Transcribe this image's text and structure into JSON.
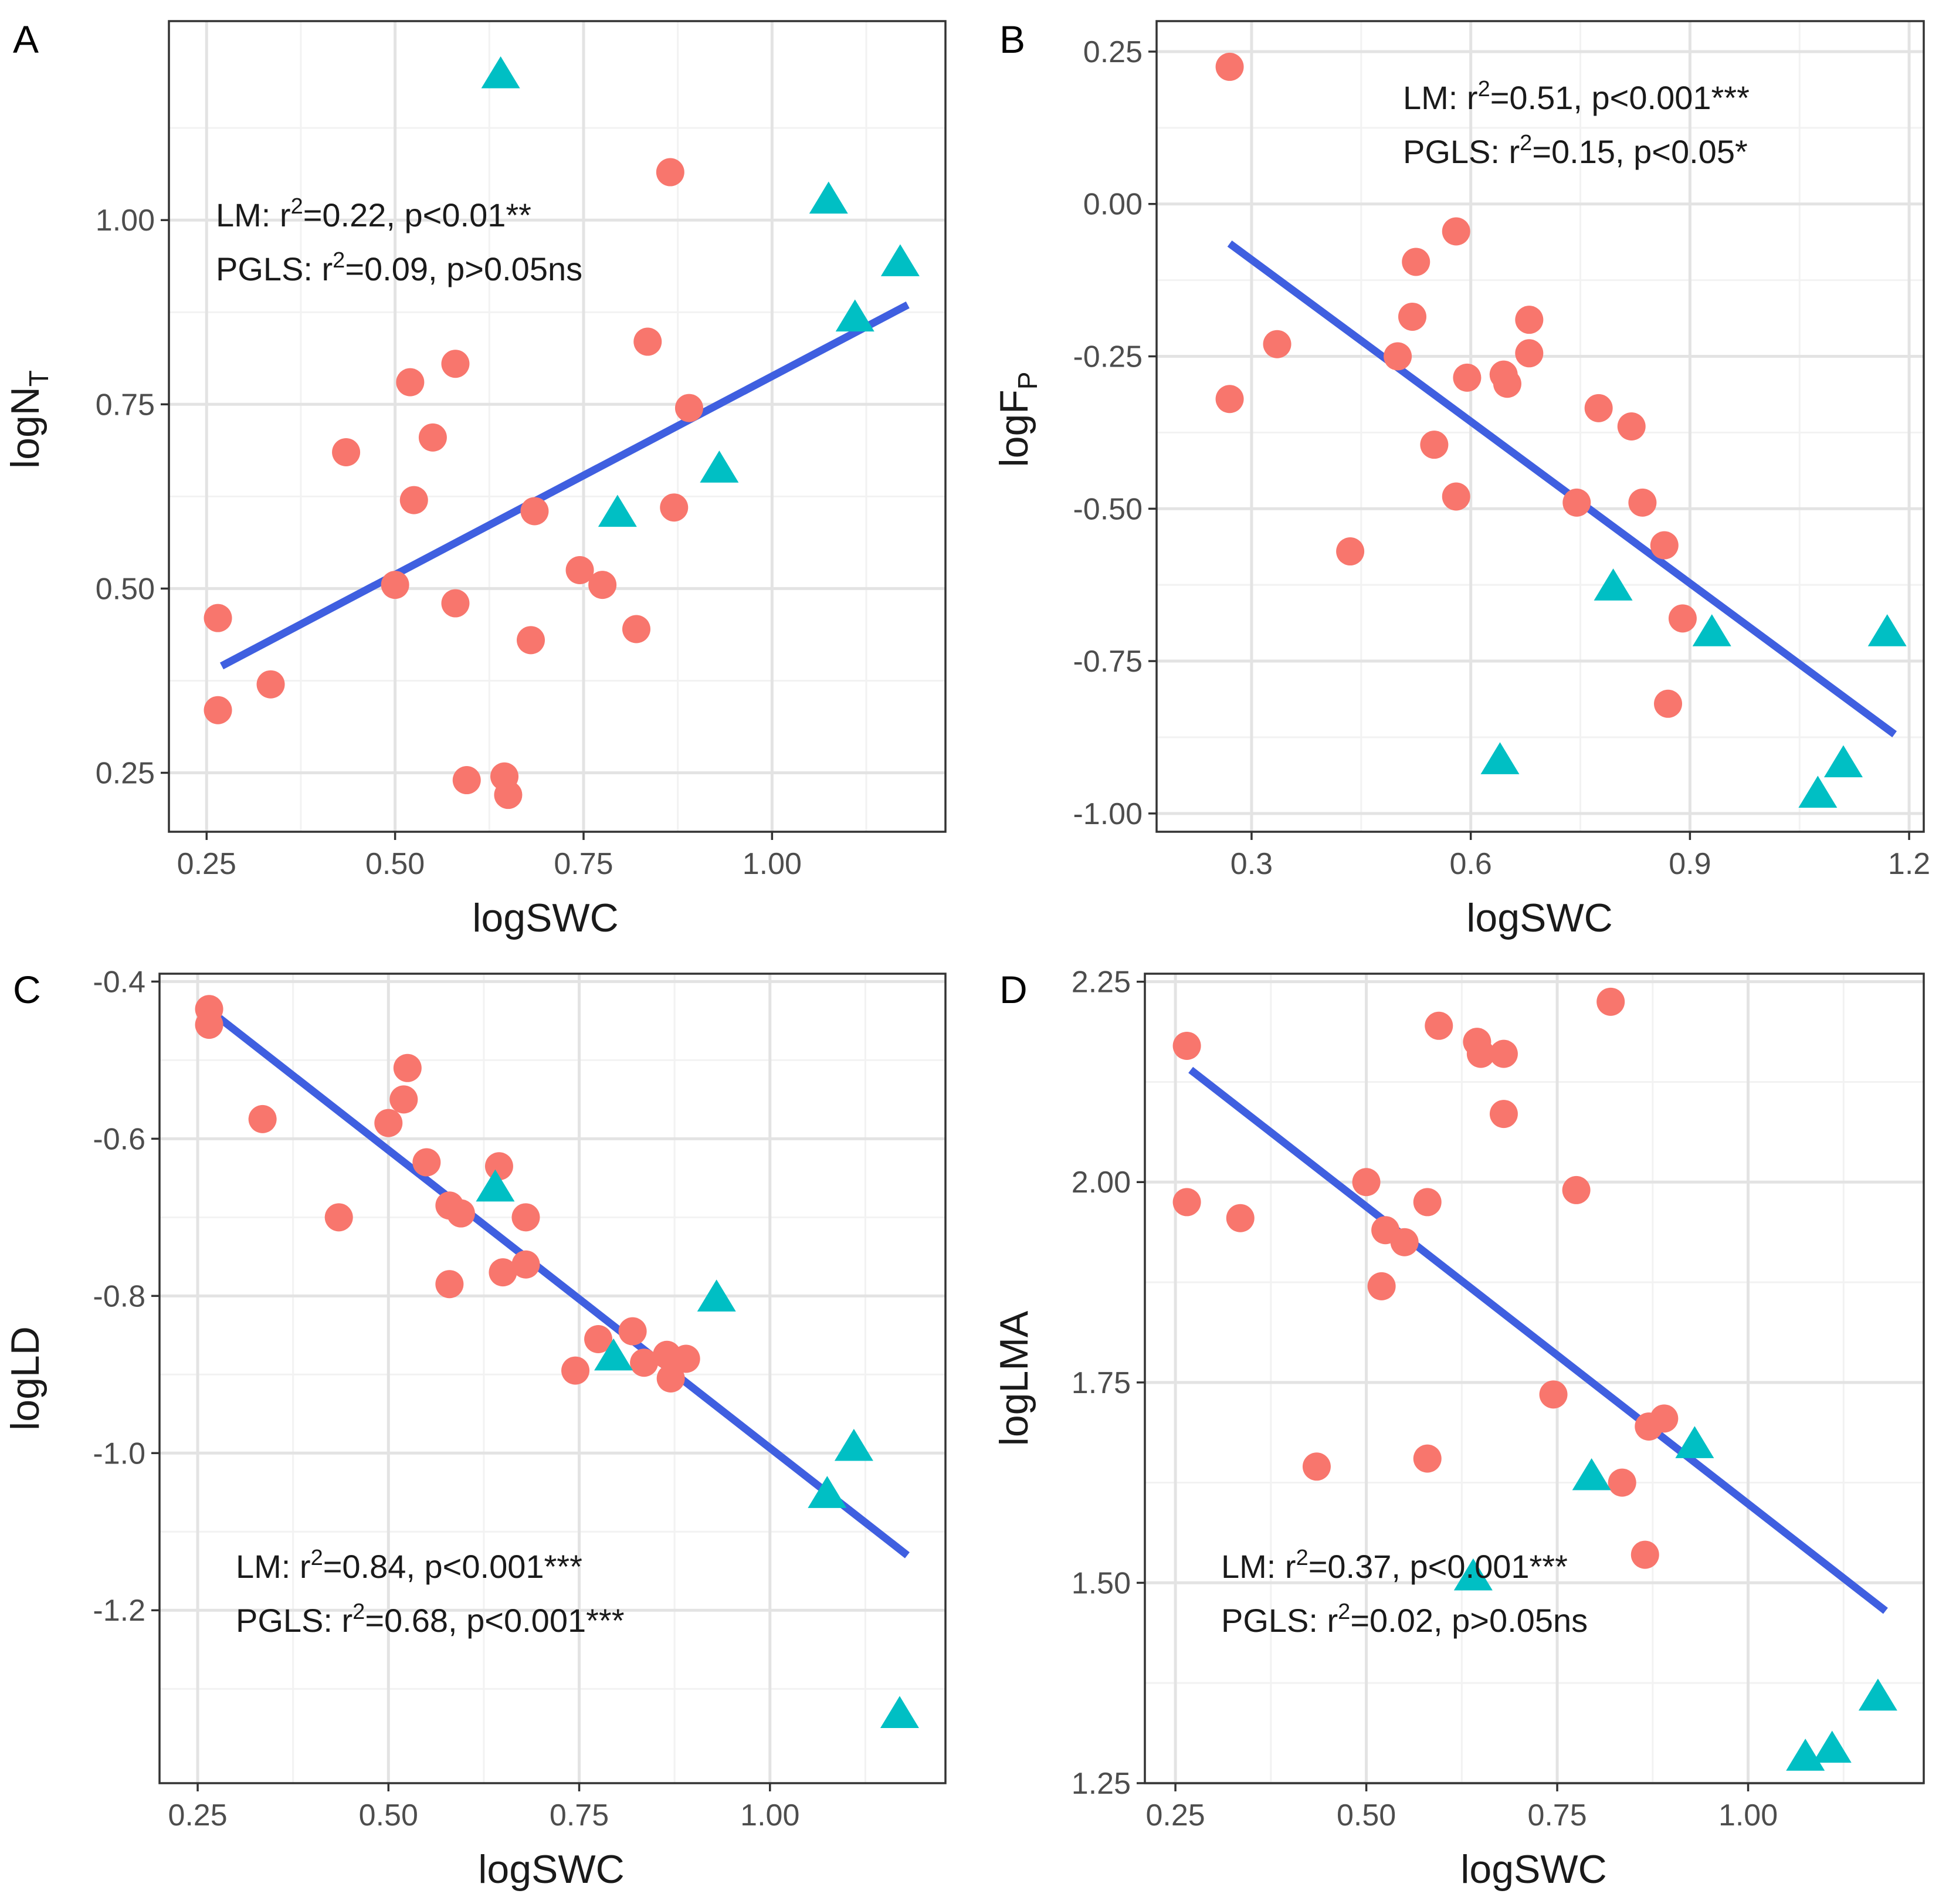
{
  "colors": {
    "herb": "#F8766D",
    "tree": "#00BFC4",
    "fit_line": "#3F5FE0"
  },
  "chart_data": [
    {
      "panel": "A",
      "type": "scatter",
      "xlabel": "logSWC",
      "ylabel": {
        "base": "logN",
        "sub": "T"
      },
      "xlim": [
        0.2,
        1.23
      ],
      "ylim": [
        0.17,
        1.27
      ],
      "xticks": [
        0.25,
        0.5,
        0.75,
        1.0
      ],
      "xtick_labels": [
        "0.25",
        "0.50",
        "0.75",
        "1.00"
      ],
      "yticks": [
        0.25,
        0.5,
        0.75,
        1.0
      ],
      "ytick_labels": [
        "0.25",
        "0.50",
        "0.75",
        "1.00"
      ],
      "annotation_pos": "top-left",
      "stats": [
        {
          "prefix": "LM: r",
          "sup": "2",
          "rest": "=0.22, p<0.01**"
        },
        {
          "prefix": "PGLS: r",
          "sup": "2",
          "rest": "=0.09, p>0.05ns"
        }
      ],
      "fit": {
        "x": [
          0.27,
          1.18
        ],
        "y": [
          0.395,
          0.885
        ]
      },
      "series": [
        {
          "name": "circles",
          "marker": "circle",
          "points": [
            [
              0.265,
              0.46
            ],
            [
              0.265,
              0.335
            ],
            [
              0.335,
              0.37
            ],
            [
              0.435,
              0.685
            ],
            [
              0.5,
              0.505
            ],
            [
              0.52,
              0.78
            ],
            [
              0.525,
              0.62
            ],
            [
              0.55,
              0.705
            ],
            [
              0.58,
              0.805
            ],
            [
              0.58,
              0.48
            ],
            [
              0.595,
              0.24
            ],
            [
              0.645,
              0.245
            ],
            [
              0.65,
              0.22
            ],
            [
              0.68,
              0.43
            ],
            [
              0.685,
              0.605
            ],
            [
              0.745,
              0.525
            ],
            [
              0.775,
              0.505
            ],
            [
              0.82,
              0.445
            ],
            [
              0.835,
              0.835
            ],
            [
              0.865,
              1.065
            ],
            [
              0.87,
              0.61
            ],
            [
              0.89,
              0.745
            ]
          ]
        },
        {
          "name": "triangles",
          "marker": "triangle",
          "points": [
            [
              0.64,
              1.2
            ],
            [
              0.795,
              0.605
            ],
            [
              0.93,
              0.665
            ],
            [
              1.075,
              1.03
            ],
            [
              1.11,
              0.87
            ],
            [
              1.17,
              0.945
            ]
          ]
        }
      ]
    },
    {
      "panel": "B",
      "type": "scatter",
      "xlabel": "logSWC",
      "ylabel": {
        "base": "logF",
        "sub": "P"
      },
      "xlim": [
        0.17,
        1.22
      ],
      "ylim": [
        -1.03,
        0.3
      ],
      "xticks": [
        0.3,
        0.6,
        0.9,
        1.2
      ],
      "xtick_labels": [
        "0.3",
        "0.6",
        "0.9",
        "1.2"
      ],
      "yticks": [
        -1.0,
        -0.75,
        -0.5,
        -0.25,
        0.0,
        0.25
      ],
      "ytick_labels": [
        "-1.00",
        "-0.75",
        "-0.50",
        "-0.25",
        "0.00",
        "0.25"
      ],
      "annotation_pos": "top-right",
      "stats": [
        {
          "prefix": "LM: r",
          "sup": "2",
          "rest": "=0.51, p<0.001***"
        },
        {
          "prefix": "PGLS: r",
          "sup": "2",
          "rest": "=0.15, p<0.05*"
        }
      ],
      "fit": {
        "x": [
          0.27,
          1.18
        ],
        "y": [
          -0.065,
          -0.87
        ]
      },
      "series": [
        {
          "name": "circles",
          "marker": "circle",
          "points": [
            [
              0.27,
              0.225
            ],
            [
              0.27,
              -0.32
            ],
            [
              0.335,
              -0.23
            ],
            [
              0.435,
              -0.57
            ],
            [
              0.5,
              -0.25
            ],
            [
              0.52,
              -0.185
            ],
            [
              0.525,
              -0.095
            ],
            [
              0.55,
              -0.395
            ],
            [
              0.58,
              -0.045
            ],
            [
              0.58,
              -0.48
            ],
            [
              0.595,
              -0.285
            ],
            [
              0.645,
              -0.28
            ],
            [
              0.65,
              -0.295
            ],
            [
              0.68,
              -0.19
            ],
            [
              0.68,
              -0.245
            ],
            [
              0.745,
              -0.49
            ],
            [
              0.775,
              -0.335
            ],
            [
              0.82,
              -0.365
            ],
            [
              0.835,
              -0.49
            ],
            [
              0.865,
              -0.56
            ],
            [
              0.87,
              -0.82
            ],
            [
              0.89,
              -0.68
            ]
          ]
        },
        {
          "name": "triangles",
          "marker": "triangle",
          "points": [
            [
              0.64,
              -0.91
            ],
            [
              0.795,
              -0.625
            ],
            [
              0.93,
              -0.7
            ],
            [
              1.075,
              -0.965
            ],
            [
              1.11,
              -0.915
            ],
            [
              1.17,
              -0.7
            ]
          ]
        }
      ]
    },
    {
      "panel": "C",
      "type": "scatter",
      "xlabel": "logSWC",
      "ylabel": {
        "base": "logLD",
        "sub": ""
      },
      "xlim": [
        0.2,
        1.23
      ],
      "ylim": [
        -1.42,
        -0.39
      ],
      "xticks": [
        0.25,
        0.5,
        0.75,
        1.0
      ],
      "xtick_labels": [
        "0.25",
        "0.50",
        "0.75",
        "1.00"
      ],
      "yticks": [
        -1.2,
        -1.0,
        -0.8,
        -0.6,
        -0.4
      ],
      "ytick_labels": [
        "-1.2",
        "-1.0",
        "-0.8",
        "-0.6",
        "-0.4"
      ],
      "annotation_pos": "bottom-left",
      "stats": [
        {
          "prefix": "LM: r",
          "sup": "2",
          "rest": "=0.84, p<0.001***"
        },
        {
          "prefix": "PGLS: r",
          "sup": "2",
          "rest": "=0.68, p<0.001***"
        }
      ],
      "fit": {
        "x": [
          0.27,
          1.18
        ],
        "y": [
          -0.44,
          -1.13
        ]
      },
      "series": [
        {
          "name": "circles",
          "marker": "circle",
          "points": [
            [
              0.265,
              -0.435
            ],
            [
              0.265,
              -0.455
            ],
            [
              0.335,
              -0.575
            ],
            [
              0.435,
              -0.7
            ],
            [
              0.5,
              -0.58
            ],
            [
              0.52,
              -0.55
            ],
            [
              0.525,
              -0.51
            ],
            [
              0.55,
              -0.63
            ],
            [
              0.58,
              -0.685
            ],
            [
              0.58,
              -0.785
            ],
            [
              0.595,
              -0.695
            ],
            [
              0.645,
              -0.635
            ],
            [
              0.65,
              -0.77
            ],
            [
              0.68,
              -0.7
            ],
            [
              0.68,
              -0.76
            ],
            [
              0.745,
              -0.895
            ],
            [
              0.775,
              -0.855
            ],
            [
              0.82,
              -0.845
            ],
            [
              0.835,
              -0.885
            ],
            [
              0.865,
              -0.875
            ],
            [
              0.87,
              -0.905
            ],
            [
              0.89,
              -0.88
            ]
          ]
        },
        {
          "name": "triangles",
          "marker": "triangle",
          "points": [
            [
              0.64,
              -0.66
            ],
            [
              0.795,
              -0.875
            ],
            [
              0.93,
              -0.8
            ],
            [
              1.075,
              -1.05
            ],
            [
              1.11,
              -0.99
            ],
            [
              1.17,
              -1.33
            ]
          ]
        }
      ]
    },
    {
      "panel": "D",
      "type": "scatter",
      "xlabel": "logSWC",
      "ylabel": {
        "base": "logLMA",
        "sub": ""
      },
      "xlim": [
        0.21,
        1.23
      ],
      "ylim": [
        1.25,
        2.26
      ],
      "xticks": [
        0.25,
        0.5,
        0.75,
        1.0
      ],
      "xtick_labels": [
        "0.25",
        "0.50",
        "0.75",
        "1.00"
      ],
      "yticks": [
        1.25,
        1.5,
        1.75,
        2.0,
        2.25
      ],
      "ytick_labels": [
        "1.25",
        "1.50",
        "1.75",
        "2.00",
        "2.25"
      ],
      "annotation_pos": "bottom-left",
      "stats": [
        {
          "prefix": "LM: r",
          "sup": "2",
          "rest": "=0.37, p<0.001***"
        },
        {
          "prefix": "PGLS: r",
          "sup": "2",
          "rest": "=0.02, p>0.05ns"
        }
      ],
      "fit": {
        "x": [
          0.27,
          1.18
        ],
        "y": [
          2.14,
          1.465
        ]
      },
      "series": [
        {
          "name": "circles",
          "marker": "circle",
          "points": [
            [
              0.265,
              2.17
            ],
            [
              0.265,
              1.975
            ],
            [
              0.335,
              1.955
            ],
            [
              0.435,
              1.645
            ],
            [
              0.5,
              2.0
            ],
            [
              0.52,
              1.87
            ],
            [
              0.525,
              1.94
            ],
            [
              0.55,
              1.925
            ],
            [
              0.58,
              1.975
            ],
            [
              0.58,
              1.655
            ],
            [
              0.595,
              2.195
            ],
            [
              0.645,
              2.175
            ],
            [
              0.65,
              2.16
            ],
            [
              0.68,
              2.16
            ],
            [
              0.68,
              2.085
            ],
            [
              0.745,
              1.735
            ],
            [
              0.775,
              1.99
            ],
            [
              0.82,
              2.225
            ],
            [
              0.835,
              1.625
            ],
            [
              0.865,
              1.535
            ],
            [
              0.87,
              1.695
            ],
            [
              0.89,
              1.705
            ]
          ]
        },
        {
          "name": "triangles",
          "marker": "triangle",
          "points": [
            [
              0.64,
              1.51
            ],
            [
              0.795,
              1.635
            ],
            [
              0.93,
              1.675
            ],
            [
              1.075,
              1.285
            ],
            [
              1.11,
              1.295
            ],
            [
              1.17,
              1.36
            ]
          ]
        }
      ]
    }
  ]
}
